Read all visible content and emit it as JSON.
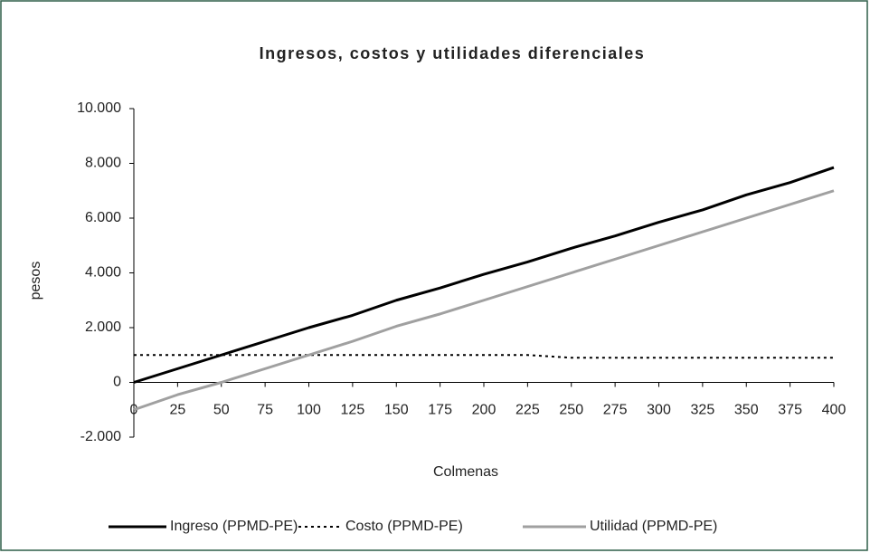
{
  "chart_data": {
    "type": "line",
    "title": "Ingresos, costos y utilidades diferenciales",
    "x_label": "Colmenas",
    "y_label": "pesos",
    "x": [
      0,
      25,
      50,
      75,
      100,
      125,
      150,
      175,
      200,
      225,
      250,
      275,
      300,
      325,
      350,
      375,
      400
    ],
    "series": [
      {
        "name": "Ingreso (PPMD-PE)",
        "color": "#000000",
        "line_style": "solid",
        "values": [
          0,
          500,
          1000,
          1500,
          2000,
          2450,
          3000,
          3450,
          3950,
          4400,
          4900,
          5350,
          5850,
          6300,
          6850,
          7300,
          7850
        ]
      },
      {
        "name": "Costo (PPMD-PE)",
        "color": "#000000",
        "line_style": "dotted",
        "values": [
          1000,
          1000,
          1000,
          1000,
          1000,
          1000,
          1000,
          1000,
          1000,
          1000,
          900,
          900,
          900,
          900,
          900,
          900,
          900
        ]
      },
      {
        "name": "Utilidad (PPMD-PE)",
        "color": "#a0a0a0",
        "line_style": "solid",
        "values": [
          -1000,
          -450,
          0,
          500,
          1000,
          1500,
          2050,
          2500,
          3000,
          3500,
          4000,
          4500,
          5000,
          5500,
          6000,
          6500,
          7000
        ]
      }
    ],
    "xlim": [
      0,
      400
    ],
    "xticks": [
      0,
      25,
      50,
      75,
      100,
      125,
      150,
      175,
      200,
      225,
      250,
      275,
      300,
      325,
      350,
      375,
      400
    ],
    "ylim": [
      -2000,
      10000
    ],
    "yticks": [
      {
        "value": -2000,
        "label": "-2.000"
      },
      0,
      {
        "value": 2000,
        "label": "2.000"
      },
      {
        "value": 4000,
        "label": "4.000"
      },
      {
        "value": 6000,
        "label": "6.000"
      },
      {
        "value": 8000,
        "label": "8.000"
      },
      {
        "value": 10000,
        "label": "10.000"
      }
    ],
    "grid": false,
    "legend": "bottom"
  }
}
